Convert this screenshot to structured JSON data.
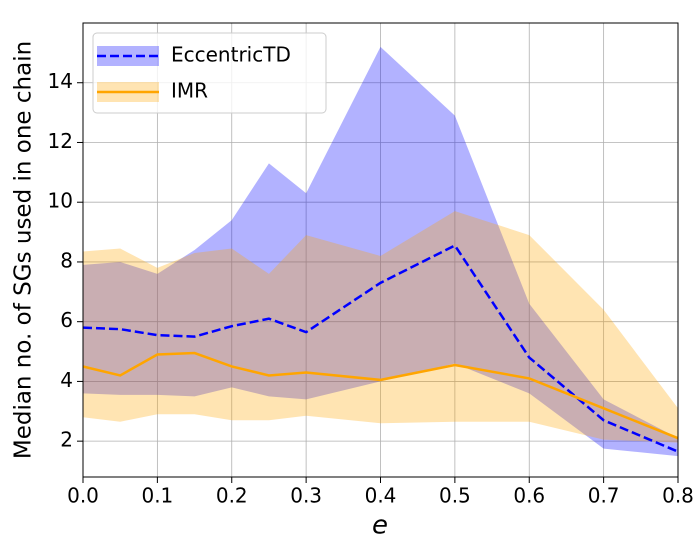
{
  "chart_data": {
    "type": "line",
    "xlabel": "e",
    "ylabel": "Median no. of SGs used in one chain",
    "x": [
      0,
      0.05,
      0.1,
      0.15,
      0.2,
      0.25,
      0.3,
      0.4,
      0.5,
      0.6,
      0.7,
      0.8
    ],
    "series": [
      {
        "name": "EccentricTD",
        "color": "#0000ff",
        "dashed": true,
        "values": [
          5.8,
          5.75,
          5.55,
          5.5,
          5.85,
          6.1,
          5.65,
          7.3,
          8.55,
          4.8,
          2.7,
          1.65
        ],
        "upper": [
          7.9,
          8.0,
          7.6,
          8.4,
          9.4,
          11.3,
          10.3,
          15.2,
          12.9,
          6.6,
          3.4,
          2.1
        ],
        "lower": [
          3.6,
          3.55,
          3.55,
          3.5,
          3.8,
          3.5,
          3.4,
          4.0,
          4.6,
          3.6,
          1.75,
          1.5
        ]
      },
      {
        "name": "IMR",
        "color": "#ffa500",
        "dashed": false,
        "values": [
          4.5,
          4.2,
          4.9,
          4.95,
          4.5,
          4.2,
          4.3,
          4.05,
          4.55,
          4.1,
          3.1,
          2.1
        ],
        "upper": [
          8.35,
          8.45,
          7.8,
          8.3,
          8.45,
          7.6,
          8.9,
          8.2,
          9.7,
          8.9,
          6.4,
          3.1
        ],
        "lower": [
          2.8,
          2.65,
          2.9,
          2.9,
          2.7,
          2.7,
          2.85,
          2.6,
          2.65,
          2.65,
          2.05,
          1.95
        ]
      }
    ],
    "xlim": [
      0,
      0.8
    ],
    "xticks": [
      {
        "value": 0,
        "label": "0.0"
      },
      0.1,
      0.2,
      0.3,
      0.4,
      0.5,
      0.6,
      0.7,
      0.8
    ],
    "ylim": [
      0.8,
      16
    ],
    "yticks": [
      2,
      4,
      6,
      8,
      10,
      12,
      14
    ],
    "grid": true,
    "legend": "upper left"
  }
}
